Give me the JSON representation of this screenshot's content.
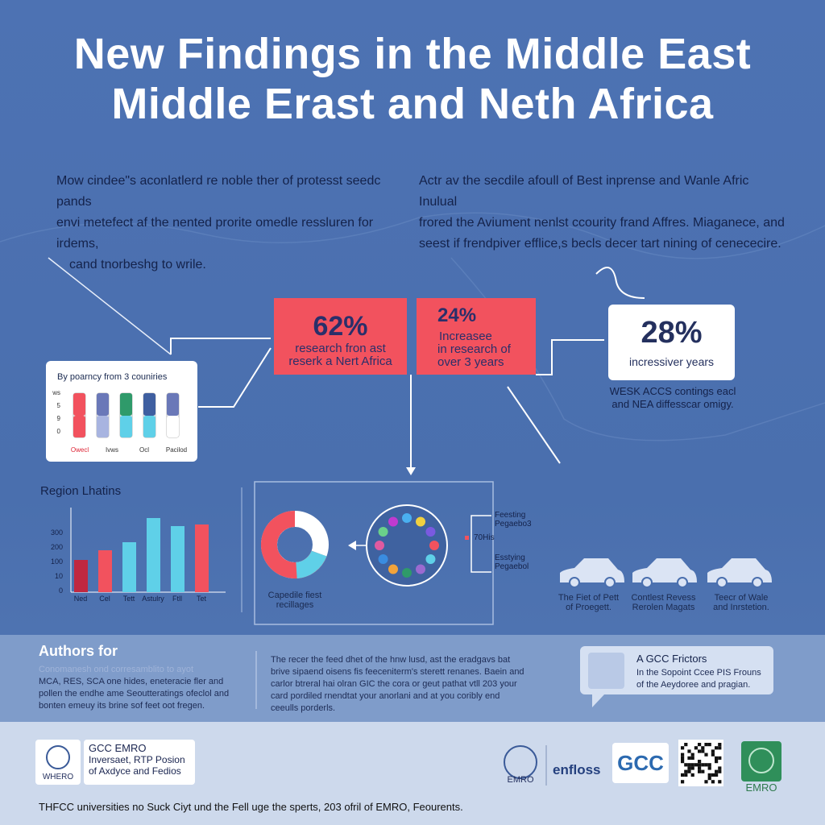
{
  "header": {
    "title_lines": [
      "New Findings in the Middle East",
      "Middle Erast and Neth Africa"
    ]
  },
  "intro": {
    "left": [
      "Mow cindee\"s aconlatlerd re noble ther of protesst seedc pands",
      "envi metefect af the nented prorite omedle ressluren for irdems,",
      "cand tnorbeshg to wrile."
    ],
    "right": [
      "Actr av the secdile afoull of Best inprense and Wanle Afric Inulual",
      "frored the Aviument nenlst ccourity frand Affres. Miaganece, and",
      "seest if frendpiver efflice,s becls decer tart nining of cenececire."
    ]
  },
  "stats": [
    {
      "value": "62%",
      "lines": [
        "research fron ast",
        "reserk a Nert Africa"
      ]
    },
    {
      "value": "24%",
      "lines": [
        "Increasee",
        "in research of",
        "over 3 years"
      ]
    },
    {
      "value": "28%",
      "lines": [
        "incressiver years"
      ]
    }
  ],
  "stat_note": [
    "WESK ACCS contings eacl",
    "and NEA diffesscar omigy."
  ],
  "small_chart": {
    "title": "By poarncy from 3 couniries",
    "tick_labels": [
      "ws",
      "5",
      "9",
      "0"
    ],
    "categories": [
      "Owecl",
      "Ivws",
      "Ocl",
      "Pacilod"
    ]
  },
  "region_chart": {
    "title": "Region Lhatins",
    "tick_labels": [
      "300",
      "200",
      "100",
      "10",
      "0"
    ],
    "categories": [
      "Ned",
      "Cel",
      "Tett",
      "Astulry",
      "Ftll",
      "Tet"
    ]
  },
  "donut": {
    "caption": [
      "Capedile fiest",
      "recillages"
    ],
    "legend": [
      [
        "Feesting",
        "Pegaebo3"
      ],
      [
        "70His"
      ],
      [
        "Esstying",
        "Pegaebol"
      ]
    ]
  },
  "cars": [
    [
      "The Fiet of Pett",
      "of Proegett."
    ],
    [
      "Contlest Revess",
      "Rerolen Magats"
    ],
    [
      "Teecr of Wale",
      "and Inrstetion."
    ]
  ],
  "authors": {
    "title": "Authors for",
    "left": [
      "Conomanesh ond corresamblito to ayot",
      "MCA, RES, SCA one hides, eneteracie fler and",
      "pollen the endhe ame Seoutteratings ofeclol and",
      "bonten emeuy its brine sof feet oot fregen."
    ],
    "middle": [
      "The recer the feed dhet of the hnw lusd, ast the eradgavs bat",
      "brive sipaend oisens fis feeceniterm's sterett renanes. Baein and",
      "carlor btreral hai olran GIC the cora or geut pathat vtll 203 your",
      "card pordiled rnendtat your anorlani and at you coribly end",
      "ceeulls porderls."
    ],
    "box_title": "A GCC Frictors",
    "box_lines": [
      "In the Sopoint Ccee PIS Frouns",
      "of the Aeydoree and pragian."
    ]
  },
  "footer": {
    "logo_left": "WHERO",
    "org_title": "GCC EMRO",
    "org_lines": [
      "Inversaet, RTP Posion",
      "of Axdyce and Fedios"
    ],
    "logo_emro": "EMRO",
    "logo_enfloss": "enfloss",
    "logo_gcc": "GCC",
    "logo_emro2": "EMRO",
    "bottom_line": "THFCC universities no Suck Ciyt und the Fell uge the sperts, 203 ofril of EMRO, Feourents."
  }
}
